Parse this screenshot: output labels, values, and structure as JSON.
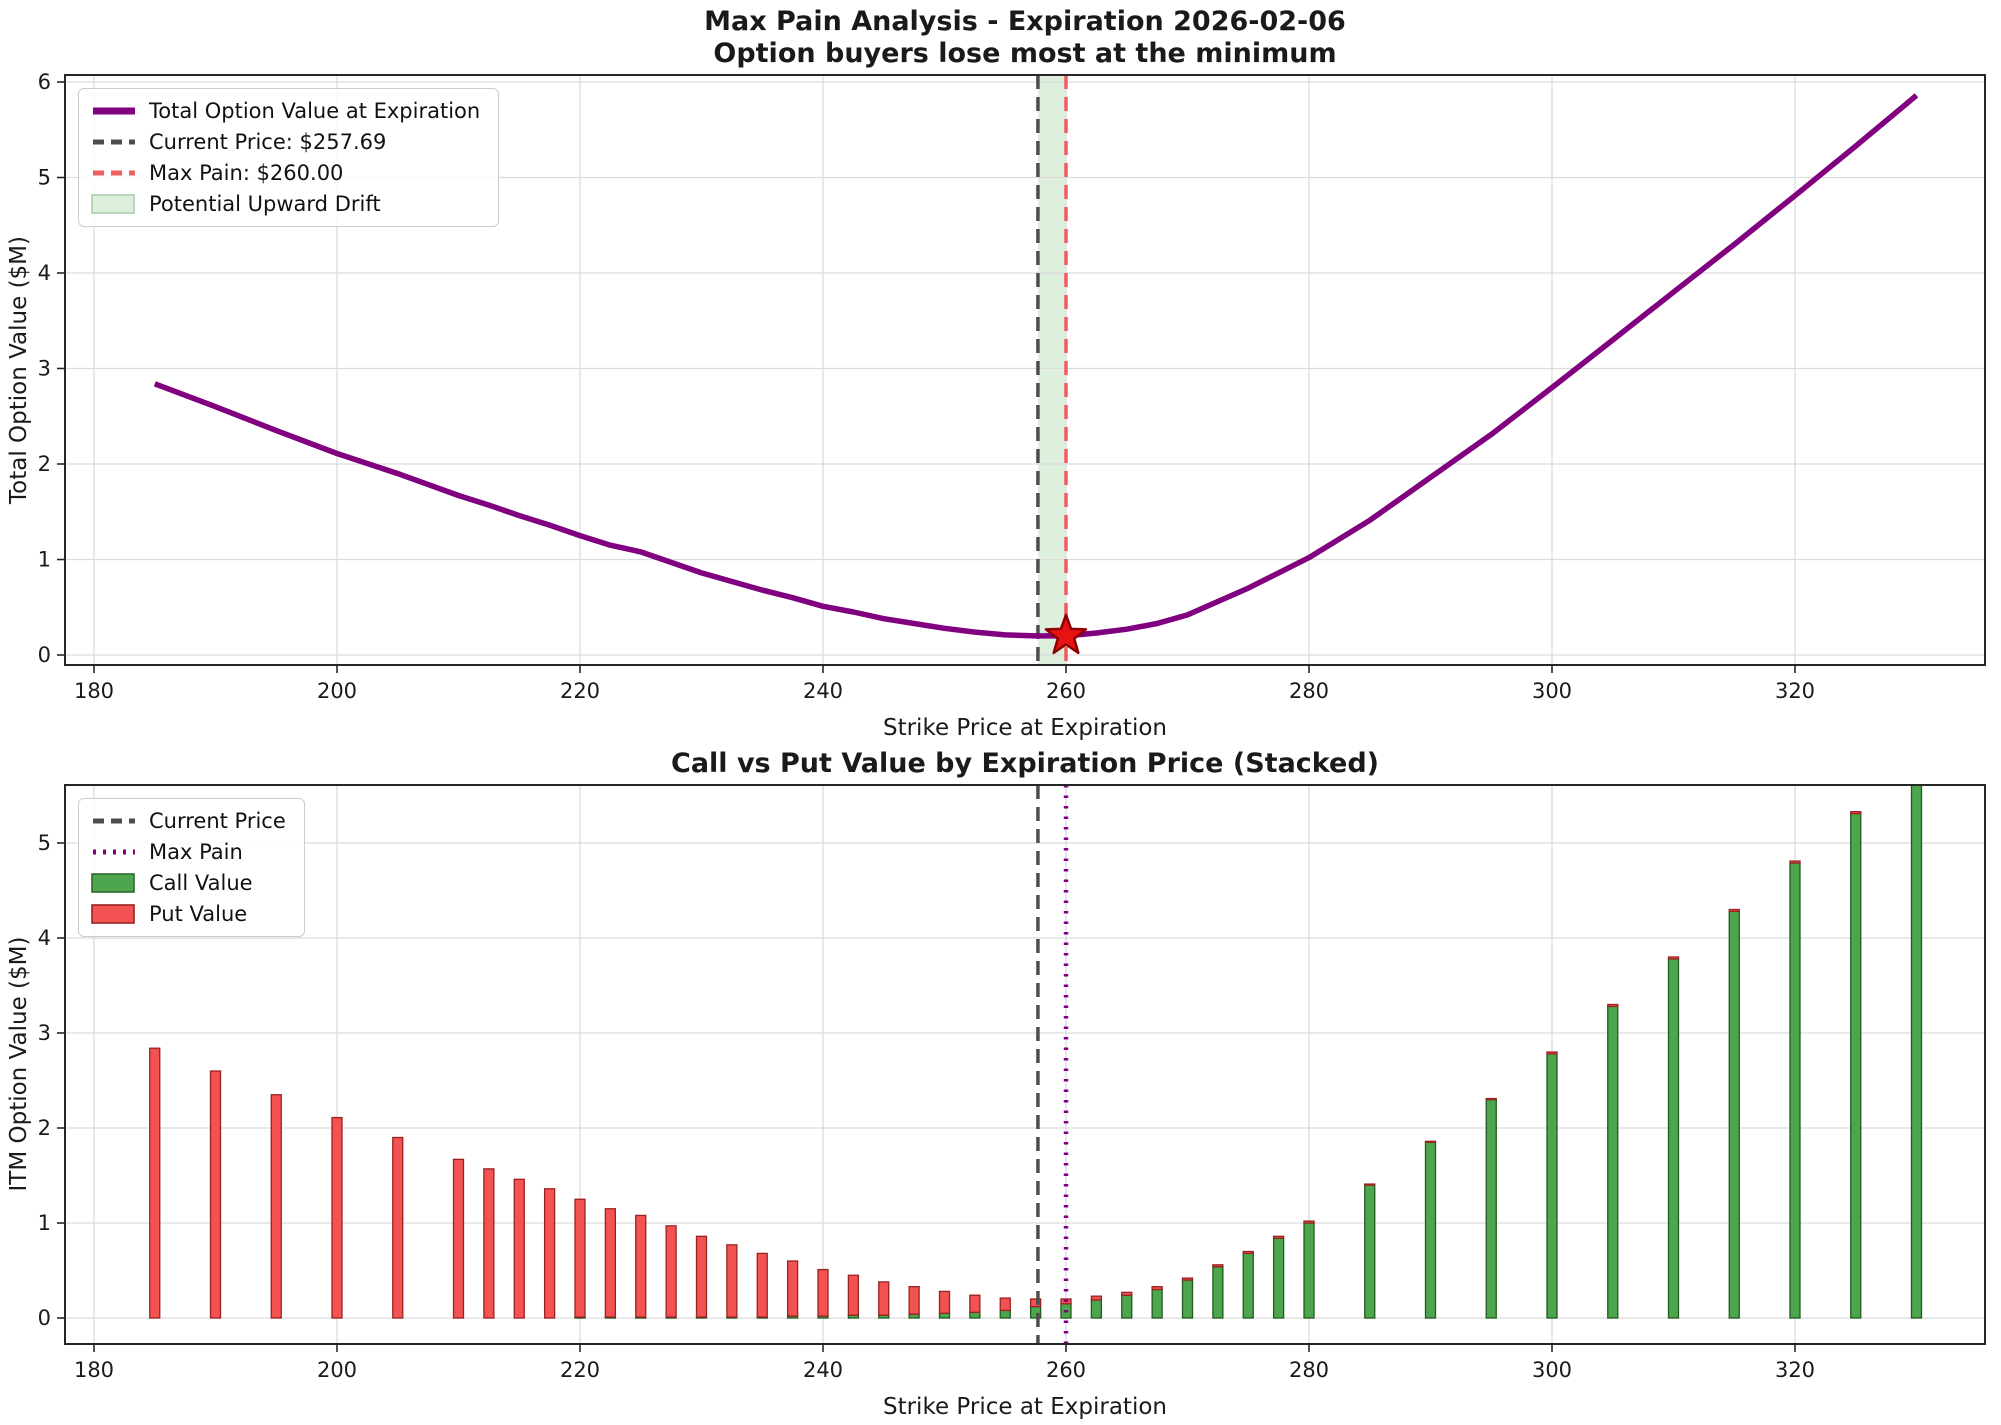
{
  "window": {
    "background": "#ffffff"
  },
  "chart_data": [
    {
      "id": "max-pain-line-chart",
      "type": "line",
      "title": "Max Pain Analysis - Expiration 2026-02-06",
      "subtitle": "Option buyers lose most at the minimum",
      "xlabel": "Strike Price at Expiration",
      "ylabel": "Total Option Value ($M)",
      "xticks": [
        180,
        200,
        220,
        240,
        260,
        280,
        300,
        320
      ],
      "yticks": [
        0,
        1,
        2,
        3,
        4,
        5,
        6
      ],
      "xlim": [
        177.5,
        335.5
      ],
      "ylim": [
        0,
        6.2
      ],
      "grid": true,
      "legend_position": "upper left",
      "x": [
        185,
        190,
        195,
        200,
        205,
        210,
        212.5,
        215,
        217.5,
        220,
        222.5,
        225,
        227.5,
        230,
        232.5,
        235,
        237.5,
        240,
        242.5,
        245,
        247.5,
        250,
        252.5,
        255,
        257.5,
        260,
        262.5,
        265,
        267.5,
        270,
        272.5,
        275,
        277.5,
        280,
        285,
        290,
        295,
        300,
        305,
        310,
        315,
        320,
        325,
        330
      ],
      "series": [
        {
          "name": "Total Option Value at Expiration",
          "color": "#800080",
          "values": [
            2.84,
            2.6,
            2.35,
            2.11,
            1.9,
            1.67,
            1.57,
            1.46,
            1.36,
            1.25,
            1.15,
            1.08,
            0.97,
            0.86,
            0.77,
            0.68,
            0.6,
            0.51,
            0.45,
            0.38,
            0.33,
            0.28,
            0.24,
            0.21,
            0.2,
            0.2,
            0.23,
            0.27,
            0.33,
            0.42,
            0.56,
            0.7,
            0.86,
            1.02,
            1.41,
            1.86,
            2.31,
            2.8,
            3.3,
            3.8,
            4.3,
            4.81,
            5.33,
            5.86
          ]
        }
      ],
      "current_price": 257.69,
      "max_pain": 260.0,
      "min_marker": {
        "x": 260,
        "y": 0.2,
        "shape": "star",
        "color": "#e81212",
        "edge_color": "#8b0000"
      },
      "drift_band": {
        "from": 257.69,
        "to": 260.0,
        "color": "#008000",
        "opacity": 0.13
      },
      "legend": [
        {
          "label": "Total Option Value at Expiration",
          "swatch": "solid",
          "color": "#800080"
        },
        {
          "label": "Current Price: $257.69",
          "swatch": "dashed",
          "color": "#4d4d4d"
        },
        {
          "label": "Max Pain: $260.00",
          "swatch": "dashed",
          "color": "#f25d5d"
        },
        {
          "label": "Potential Upward Drift",
          "swatch": "patch",
          "color": "#a9cfa9",
          "fill": "#ddeedd"
        }
      ]
    },
    {
      "id": "call-put-stacked-bar-chart",
      "type": "bar",
      "stacked": true,
      "title": "Call vs Put Value by Expiration Price (Stacked)",
      "xlabel": "Strike Price at Expiration",
      "ylabel": "ITM Option Value ($M)",
      "xticks": [
        180,
        200,
        220,
        240,
        260,
        280,
        300,
        320
      ],
      "yticks": [
        0,
        1,
        2,
        3,
        4,
        5
      ],
      "xlim": [
        177.5,
        335.5
      ],
      "ylim": [
        0,
        5.9
      ],
      "grid": true,
      "legend_position": "upper left",
      "categories": [
        185,
        190,
        195,
        200,
        205,
        210,
        212.5,
        215,
        217.5,
        220,
        222.5,
        225,
        227.5,
        230,
        232.5,
        235,
        237.5,
        240,
        242.5,
        245,
        247.5,
        250,
        252.5,
        255,
        257.5,
        260,
        262.5,
        265,
        267.5,
        270,
        272.5,
        275,
        277.5,
        280,
        285,
        290,
        295,
        300,
        305,
        310,
        315,
        320,
        325,
        330
      ],
      "series": [
        {
          "name": "Call Value",
          "color": "#4da64d",
          "edge_color": "#1f5c1f",
          "values": [
            0,
            0,
            0,
            0,
            0,
            0,
            0,
            0,
            0,
            0.01,
            0.01,
            0.01,
            0.01,
            0.01,
            0.01,
            0.01,
            0.02,
            0.02,
            0.03,
            0.03,
            0.04,
            0.05,
            0.06,
            0.08,
            0.12,
            0.15,
            0.19,
            0.24,
            0.3,
            0.4,
            0.54,
            0.68,
            0.84,
            1.0,
            1.4,
            1.85,
            2.3,
            2.78,
            3.28,
            3.78,
            4.28,
            4.79,
            5.31,
            5.84
          ]
        },
        {
          "name": "Put Value",
          "color": "#f25252",
          "edge_color": "#9c2222",
          "values": [
            2.84,
            2.6,
            2.35,
            2.11,
            1.9,
            1.67,
            1.57,
            1.46,
            1.36,
            1.24,
            1.14,
            1.07,
            0.96,
            0.85,
            0.76,
            0.67,
            0.58,
            0.49,
            0.42,
            0.35,
            0.29,
            0.23,
            0.18,
            0.13,
            0.08,
            0.05,
            0.04,
            0.03,
            0.03,
            0.02,
            0.02,
            0.02,
            0.02,
            0.02,
            0.01,
            0.01,
            0.01,
            0.02,
            0.02,
            0.02,
            0.02,
            0.02,
            0.02,
            0.02
          ]
        }
      ],
      "current_price": 257.69,
      "max_pain": 260.0,
      "legend": [
        {
          "label": "Current Price",
          "swatch": "dashed",
          "color": "#4d4d4d"
        },
        {
          "label": "Max Pain",
          "swatch": "dotted",
          "color": "#800080"
        },
        {
          "label": "Call Value",
          "swatch": "patch",
          "color": "#2d6a2d",
          "fill": "#4da64d"
        },
        {
          "label": "Put Value",
          "swatch": "patch",
          "color": "#9c2222",
          "fill": "#f25252"
        }
      ]
    }
  ]
}
